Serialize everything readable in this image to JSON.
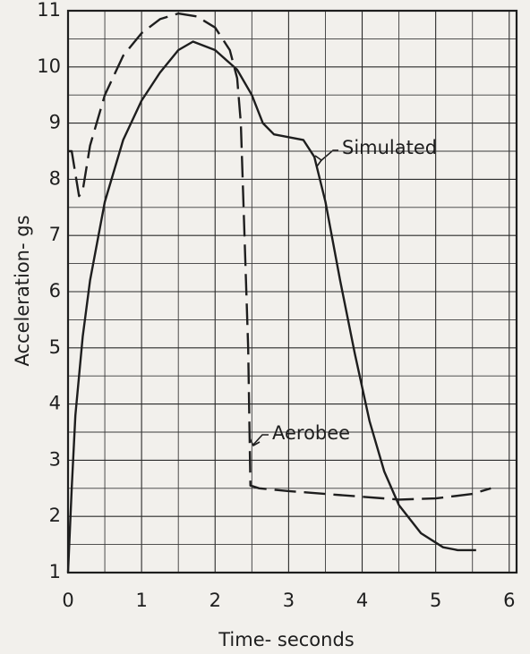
{
  "chart_data": {
    "type": "line",
    "x_label": "Time- seconds",
    "y_label": "Acceleration- gs",
    "xlim": [
      0,
      6.1
    ],
    "ylim": [
      1,
      11
    ],
    "xticks": [
      0,
      1,
      2,
      3,
      4,
      5,
      6
    ],
    "yticks": [
      1,
      2,
      3,
      4,
      5,
      6,
      7,
      8,
      9,
      10,
      11
    ],
    "grid": true,
    "minor_grid": true,
    "series": [
      {
        "name": "Simulated",
        "color": "#1e1e1e",
        "dashed": false,
        "x": [
          0,
          0.05,
          0.1,
          0.2,
          0.3,
          0.5,
          0.75,
          1.0,
          1.25,
          1.5,
          1.7,
          2.0,
          2.3,
          2.5,
          2.65,
          2.8,
          3.0,
          3.2,
          3.35,
          3.5,
          3.7,
          3.9,
          4.1,
          4.3,
          4.5,
          4.8,
          5.1,
          5.3,
          5.55
        ],
        "values": [
          1.0,
          2.5,
          3.8,
          5.2,
          6.2,
          7.6,
          8.7,
          9.4,
          9.9,
          10.3,
          10.45,
          10.3,
          9.95,
          9.5,
          9.0,
          8.8,
          8.75,
          8.7,
          8.4,
          7.6,
          6.2,
          4.9,
          3.7,
          2.8,
          2.2,
          1.7,
          1.45,
          1.4,
          1.4
        ]
      },
      {
        "name": "Aerobee",
        "color": "#1e1e1e",
        "dashed": true,
        "x": [
          0,
          0.05,
          0.1,
          0.15,
          0.2,
          0.3,
          0.5,
          0.75,
          1.0,
          1.25,
          1.5,
          1.75,
          2.0,
          2.2,
          2.3,
          2.35,
          2.4,
          2.45,
          2.48,
          2.6,
          3.0,
          3.5,
          4.0,
          4.5,
          5.0,
          5.5,
          5.75
        ],
        "values": [
          8.5,
          8.5,
          8.1,
          7.7,
          7.8,
          8.6,
          9.5,
          10.2,
          10.6,
          10.85,
          10.95,
          10.9,
          10.7,
          10.3,
          9.8,
          9.0,
          7.0,
          5.0,
          2.55,
          2.5,
          2.45,
          2.4,
          2.35,
          2.3,
          2.32,
          2.4,
          2.5
        ]
      }
    ]
  }
}
